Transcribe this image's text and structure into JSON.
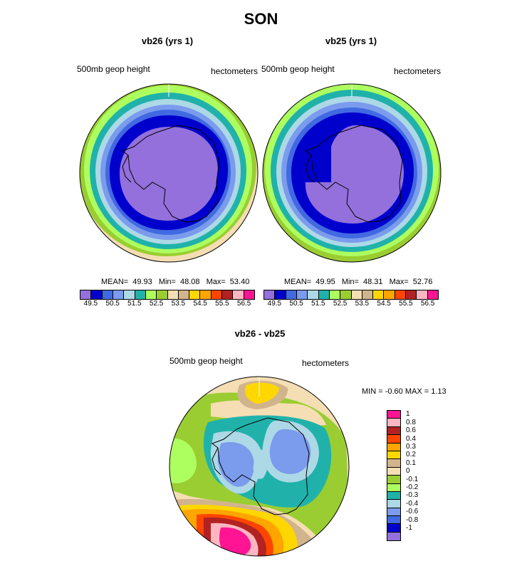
{
  "title": "SON",
  "panel_left": {
    "title": "vb26 (yrs 1)",
    "left_label": "500mb geop height",
    "right_label": "hectometers",
    "mean_label": "MEAN=",
    "mean": "49.93",
    "min_label": "Min=",
    "min": "48.08",
    "max_label": "Max=",
    "max": "53.40"
  },
  "panel_right": {
    "title": "vb25 (yrs 1)",
    "left_label": "500mb geop height",
    "right_label": "hectometers",
    "mean_label": "MEAN=",
    "mean": "49.95",
    "min_label": "Min=",
    "min": "48.31",
    "max_label": "Max=",
    "max": "52.76"
  },
  "panel_diff": {
    "title": "vb26 - vb25",
    "left_label": "500mb geop height",
    "right_label": "hectometers",
    "minmax_text": "MIN =  -0.60 MAX =   1.13"
  },
  "chart_data": {
    "type": "heatmap",
    "projection": "south polar stereographic",
    "field": "500mb geop height",
    "units": "hectometers",
    "season": "SON",
    "abs_colorbar": {
      "labels": [
        "49.5",
        "50.5",
        "51.5",
        "52.5",
        "53.5",
        "54.5",
        "55.5",
        "56.5"
      ],
      "colors": [
        "#9370db",
        "#0000cd",
        "#4169e1",
        "#7b9bed",
        "#add8e6",
        "#20b2aa",
        "#adff5f",
        "#9acd32",
        "#f5deb3",
        "#d2b48c",
        "#ffd700",
        "#ffa500",
        "#ff4500",
        "#b22222",
        "#ffb6c1",
        "#ff1493"
      ]
    },
    "diff_colorbar": {
      "labels": [
        "1",
        "0.8",
        "0.6",
        "0.4",
        "0.3",
        "0.2",
        "0.1",
        "0",
        "-0.1",
        "-0.2",
        "-0.3",
        "-0.4",
        "-0.6",
        "-0.8",
        "-1"
      ],
      "colors": [
        "#ff1493",
        "#ffb6c1",
        "#b22222",
        "#ff4500",
        "#ffa500",
        "#ffd700",
        "#d2b48c",
        "#f5deb3",
        "#9acd32",
        "#adff5f",
        "#20b2aa",
        "#add8e6",
        "#7b9bed",
        "#4169e1",
        "#0000cd",
        "#9370db"
      ]
    }
  }
}
